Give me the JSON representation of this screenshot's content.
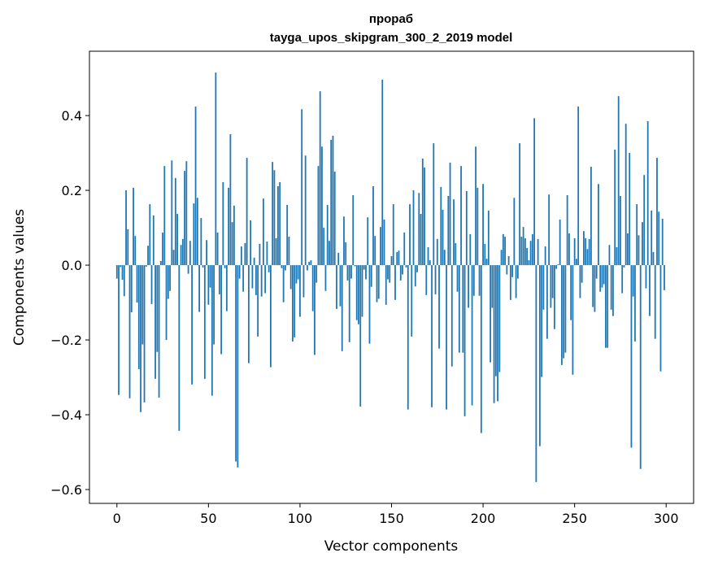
{
  "chart_data": {
    "type": "bar",
    "title": "прораб",
    "subtitle": "tayga_upos_skipgram_300_2_2019 model",
    "xlabel": "Vector components",
    "ylabel": "Components values",
    "xlim": [
      -15,
      315
    ],
    "ylim": [
      -0.637,
      0.572
    ],
    "grid": false,
    "bar_color": "#1f77b4",
    "x_ticks": [
      0,
      50,
      100,
      150,
      200,
      250,
      300
    ],
    "x_tick_labels": [
      "0",
      "50",
      "100",
      "150",
      "200",
      "250",
      "300"
    ],
    "y_ticks": [
      0.4,
      0.2,
      0.0,
      -0.2,
      -0.4,
      -0.6
    ],
    "y_tick_labels": [
      "0.4",
      "0.2",
      "0.0",
      "−0.2",
      "−0.4",
      "−0.6"
    ],
    "x_start": 0,
    "values": [
      -0.036,
      -0.347,
      -0.005,
      -0.039,
      -0.083,
      0.2,
      0.096,
      -0.356,
      -0.126,
      0.207,
      0.078,
      -0.1,
      -0.278,
      -0.393,
      -0.212,
      -0.367,
      -0.004,
      0.052,
      0.163,
      -0.104,
      0.133,
      -0.304,
      -0.232,
      -0.354,
      0.011,
      0.087,
      0.265,
      -0.2,
      -0.09,
      -0.069,
      0.28,
      0.041,
      0.233,
      0.137,
      -0.443,
      0.054,
      0.07,
      0.252,
      0.278,
      -0.023,
      0.065,
      -0.319,
      0.165,
      0.424,
      0.18,
      -0.125,
      0.126,
      -0.006,
      -0.304,
      0.067,
      -0.106,
      -0.06,
      -0.349,
      -0.212,
      0.515,
      0.087,
      -0.078,
      -0.238,
      0.222,
      -0.008,
      -0.123,
      0.207,
      0.35,
      0.115,
      0.159,
      -0.525,
      -0.541,
      -0.036,
      0.05,
      -0.071,
      0.059,
      0.287,
      -0.262,
      0.12,
      -0.062,
      0.02,
      -0.08,
      -0.191,
      0.057,
      -0.084,
      0.178,
      -0.075,
      0.063,
      -0.019,
      -0.273,
      0.276,
      0.254,
      0.072,
      0.211,
      0.222,
      -0.008,
      -0.099,
      -0.014,
      0.161,
      0.076,
      -0.064,
      -0.204,
      -0.193,
      -0.049,
      -0.038,
      -0.138,
      0.417,
      -0.086,
      0.293,
      -0.014,
      0.009,
      0.013,
      -0.123,
      -0.24,
      -0.047,
      0.265,
      0.465,
      0.317,
      0.1,
      -0.069,
      0.161,
      0.065,
      0.335,
      0.346,
      0.25,
      -0.117,
      0.033,
      -0.11,
      -0.23,
      0.13,
      0.061,
      -0.041,
      -0.206,
      -0.036,
      0.187,
      -0.003,
      -0.147,
      -0.158,
      -0.378,
      -0.138,
      -0.012,
      -0.038,
      0.128,
      -0.21,
      -0.058,
      0.211,
      0.078,
      -0.099,
      -0.09,
      0.102,
      0.496,
      0.122,
      -0.106,
      -0.038,
      -0.047,
      0.024,
      0.163,
      -0.093,
      0.035,
      0.039,
      -0.041,
      -0.025,
      0.087,
      -0.006,
      -0.386,
      0.163,
      -0.191,
      0.2,
      -0.057,
      -0.019,
      0.193,
      0.137,
      0.285,
      0.261,
      -0.08,
      0.048,
      0.013,
      -0.38,
      0.326,
      -0.078,
      0.07,
      -0.223,
      0.209,
      0.148,
      0.041,
      -0.386,
      0.185,
      0.274,
      -0.271,
      0.176,
      0.059,
      -0.071,
      -0.234,
      0.265,
      -0.234,
      -0.404,
      0.198,
      -0.114,
      0.083,
      -0.375,
      -0.082,
      0.317,
      0.207,
      -0.082,
      -0.449,
      0.217,
      0.057,
      0.017,
      0.146,
      -0.26,
      -0.114,
      -0.369,
      -0.297,
      -0.364,
      -0.286,
      0.041,
      0.083,
      0.076,
      -0.025,
      0.024,
      -0.093,
      -0.032,
      0.18,
      -0.088,
      -0.036,
      0.326,
      0.076,
      0.102,
      0.072,
      0.046,
      0.013,
      0.065,
      0.083,
      0.393,
      -0.58,
      0.07,
      -0.484,
      -0.299,
      -0.119,
      0.05,
      -0.197,
      0.189,
      -0.114,
      -0.088,
      -0.171,
      -0.01,
      0.002,
      0.122,
      -0.267,
      -0.249,
      -0.234,
      0.187,
      0.085,
      -0.147,
      -0.293,
      0.072,
      0.017,
      0.424,
      -0.088,
      -0.047,
      0.091,
      0.072,
      0.043,
      0.07,
      0.263,
      -0.112,
      -0.125,
      -0.036,
      0.217,
      -0.071,
      -0.06,
      -0.051,
      -0.221,
      -0.221,
      0.054,
      -0.119,
      -0.136,
      0.309,
      0.048,
      0.452,
      0.185,
      -0.075,
      -0.006,
      0.378,
      0.085,
      0.3,
      -0.488,
      -0.084,
      -0.204,
      0.163,
      0.08,
      -0.545,
      0.115,
      0.241,
      -0.062,
      0.385,
      -0.136,
      0.146,
      0.035,
      -0.197,
      0.287,
      0.143,
      -0.284,
      0.124,
      -0.067
    ]
  }
}
